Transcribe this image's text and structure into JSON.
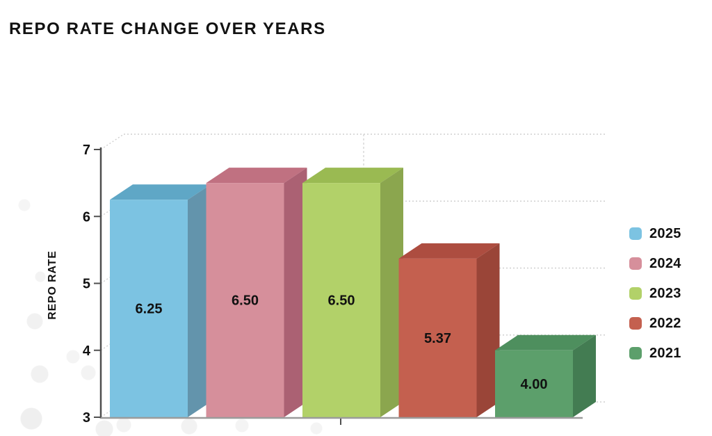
{
  "title": "REPO RATE CHANGE OVER YEARS",
  "chart_data": {
    "type": "bar",
    "variant": "3d-column",
    "title": "REPO RATE CHANGE OVER YEARS",
    "xlabel": "",
    "ylabel": "REPO RATE",
    "ylim": [
      3,
      7
    ],
    "yticks": [
      3,
      4,
      5,
      6,
      7
    ],
    "grid": "dotted-backwall",
    "legend_position": "right",
    "text_color": "#111111",
    "axis_color": "#4f4f4f",
    "baseline_color": "#9b9b9b",
    "grid_color": "#cfcfcf",
    "series": [
      {
        "name": "2025",
        "value": 6.25,
        "label": "6.25",
        "color": {
          "front": "#7CC3E2",
          "top": "#5FA7C6",
          "side": "#6394AC"
        }
      },
      {
        "name": "2024",
        "value": 6.5,
        "label": "6.50",
        "color": {
          "front": "#D68F9B",
          "top": "#C07181",
          "side": "#AB6173"
        }
      },
      {
        "name": "2023",
        "value": 6.5,
        "label": "6.50",
        "color": {
          "front": "#B2D169",
          "top": "#9ABA52",
          "side": "#8BA64E"
        }
      },
      {
        "name": "2022",
        "value": 5.37,
        "label": "5.37",
        "color": {
          "front": "#C4604F",
          "top": "#AD4D40",
          "side": "#9A4538"
        }
      },
      {
        "name": "2021",
        "value": 4.0,
        "label": "4.00",
        "color": {
          "front": "#5C9F6B",
          "top": "#4E8F5E",
          "side": "#437C52"
        }
      }
    ]
  }
}
